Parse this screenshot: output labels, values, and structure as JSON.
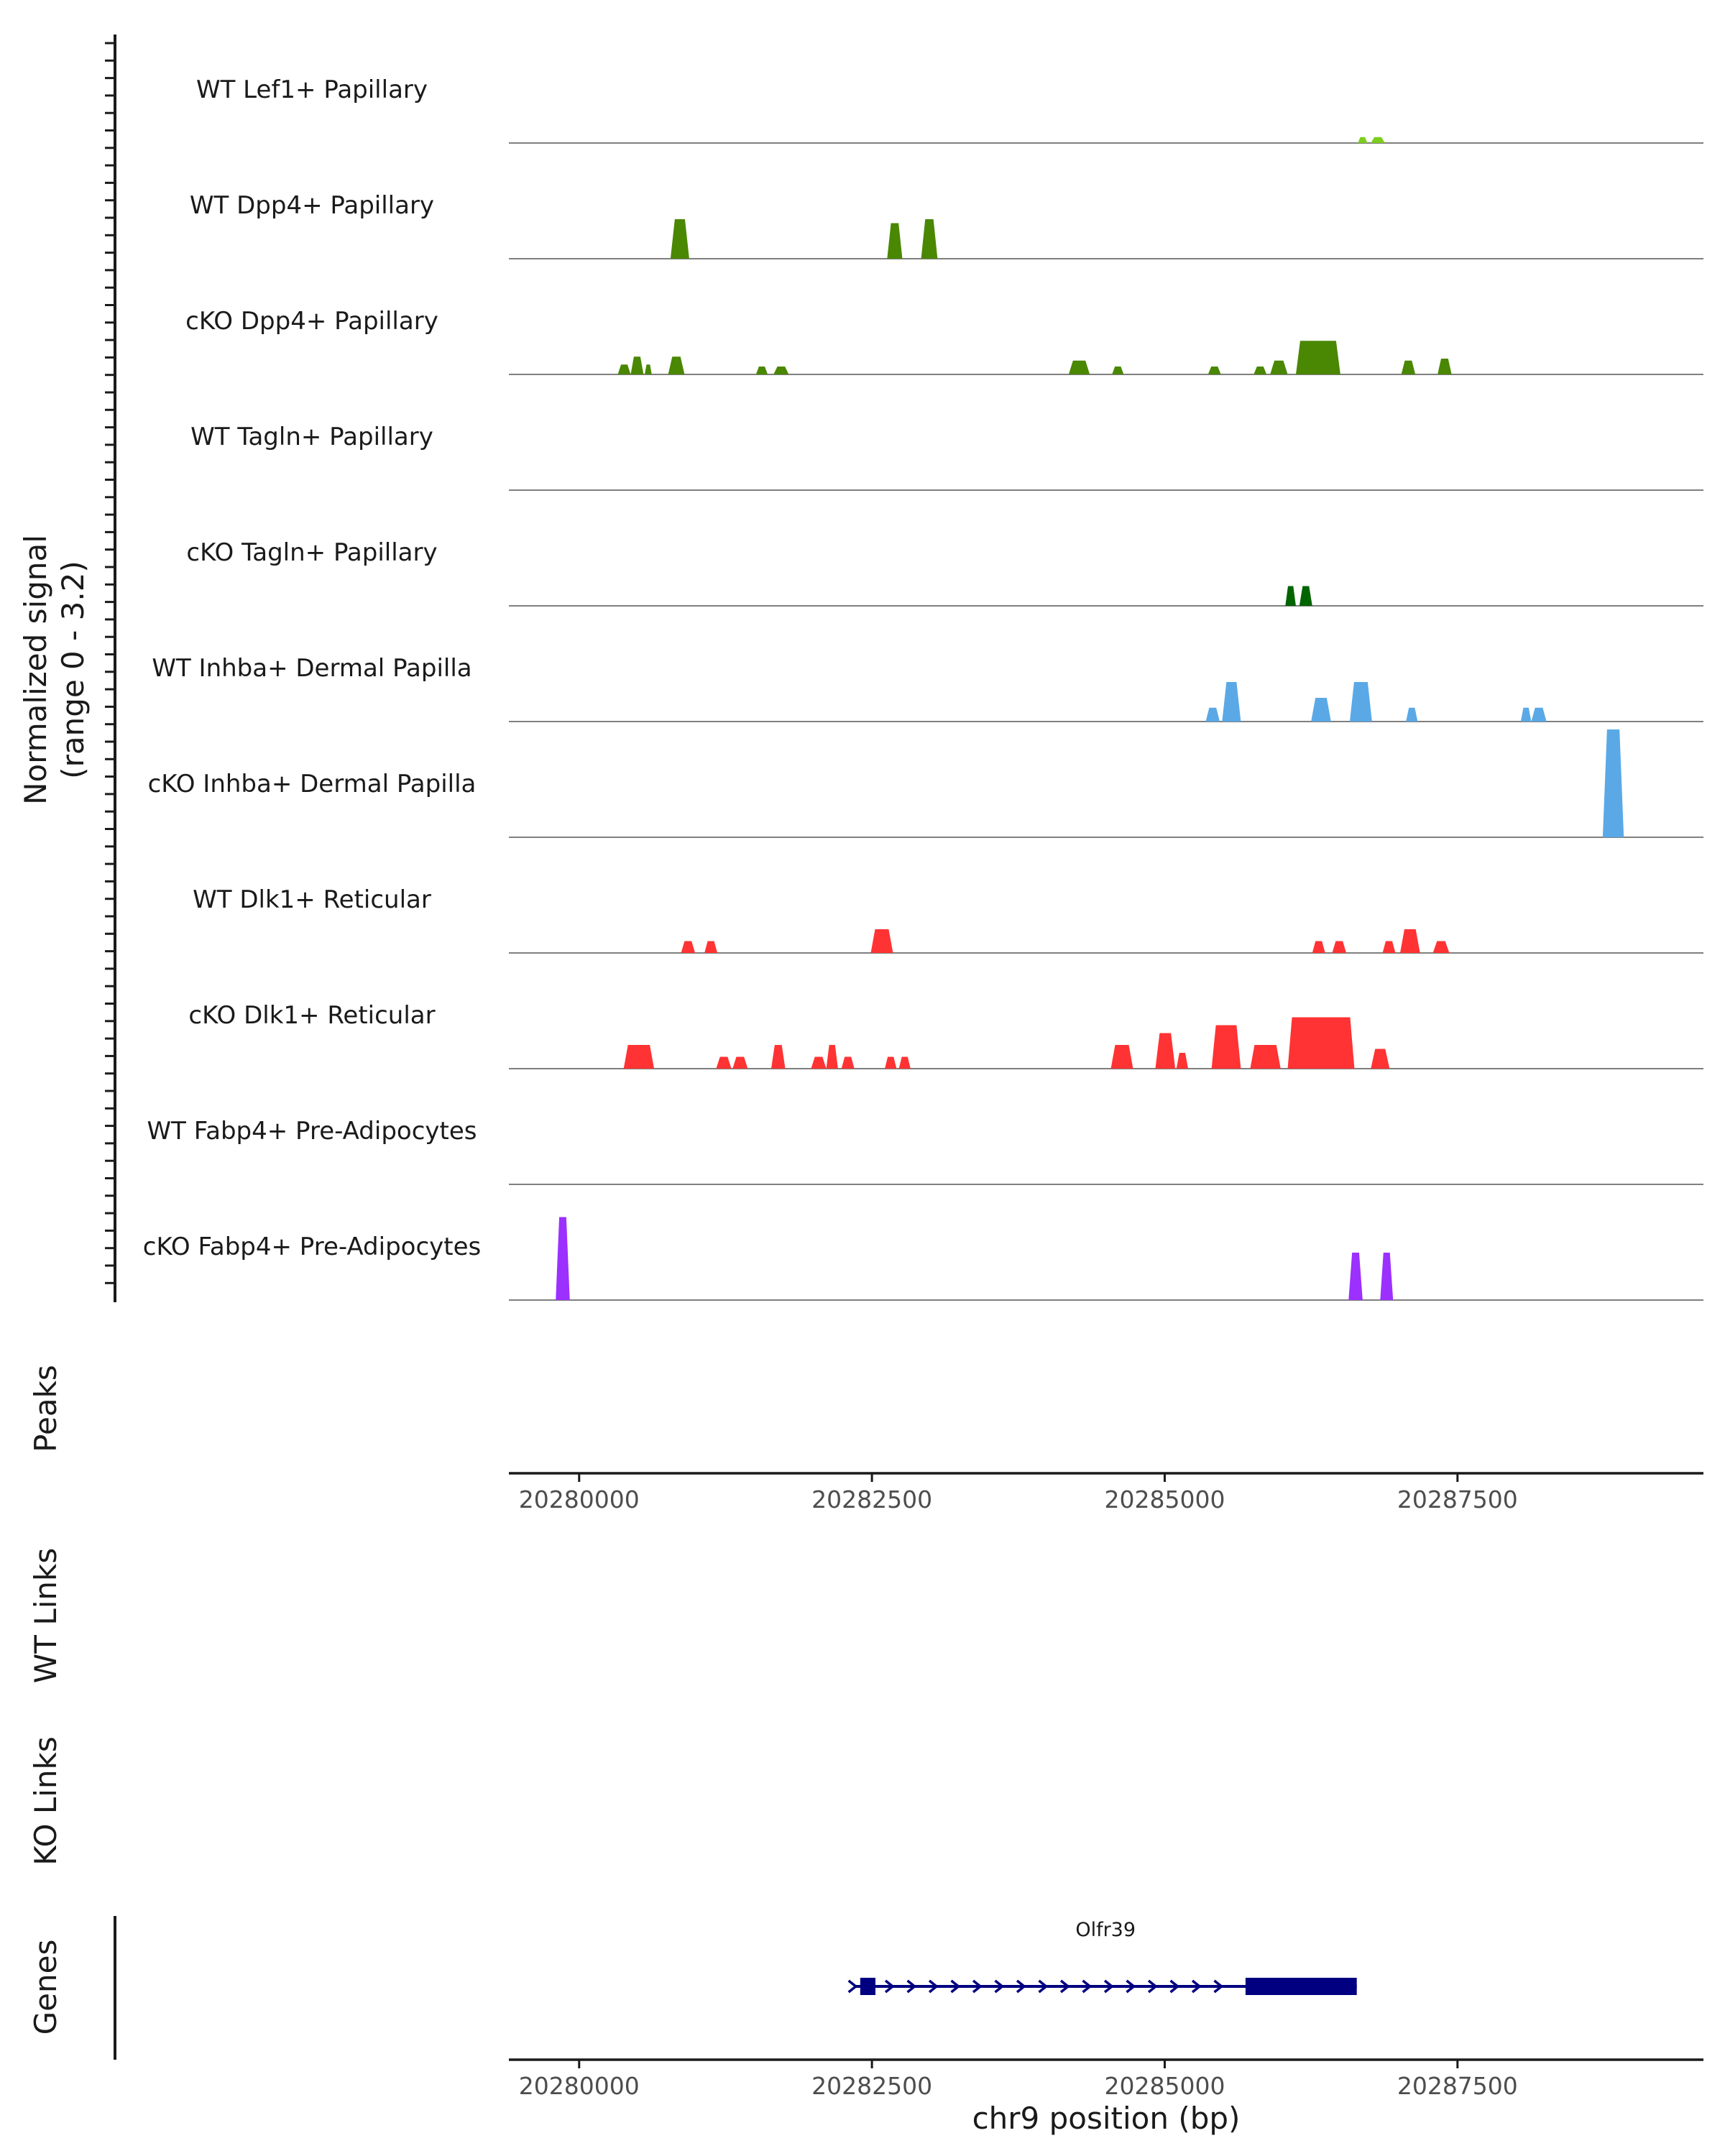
{
  "chart_data": {
    "type": "genome-coverage-tracks",
    "coverage": {
      "ylabel_line1": "Normalized signal",
      "ylabel_line2": "(range 0 - 3.2)",
      "ymax": 3.2,
      "tracks": [
        {
          "name": "WT Lef1+ Papillary",
          "color": "#7CCD1E",
          "peaks": [
            [
              20286650,
              20286730,
              0.15
            ],
            [
              20286760,
              20286880,
              0.15
            ]
          ]
        },
        {
          "name": "WT Dpp4+ Papillary",
          "color": "#4A8703",
          "peaks": [
            [
              20280780,
              20280940,
              1.0
            ],
            [
              20282630,
              20282760,
              0.9
            ],
            [
              20282920,
              20283060,
              1.0
            ]
          ]
        },
        {
          "name": "cKO Dpp4+ Papillary",
          "color": "#4A8703",
          "peaks": [
            [
              20280330,
              20280440,
              0.25
            ],
            [
              20280440,
              20280550,
              0.45
            ],
            [
              20280560,
              20280620,
              0.25
            ],
            [
              20280760,
              20280900,
              0.45
            ],
            [
              20281510,
              20281610,
              0.2
            ],
            [
              20281660,
              20281790,
              0.2
            ],
            [
              20284180,
              20284360,
              0.35
            ],
            [
              20284550,
              20284650,
              0.2
            ],
            [
              20285370,
              20285480,
              0.2
            ],
            [
              20285760,
              20285870,
              0.2
            ],
            [
              20285900,
              20286050,
              0.35
            ],
            [
              20286120,
              20286500,
              0.85
            ],
            [
              20287020,
              20287140,
              0.35
            ],
            [
              20287330,
              20287450,
              0.4
            ]
          ]
        },
        {
          "name": "WT Tagln+ Papillary",
          "color": "#3C8C21",
          "peaks": []
        },
        {
          "name": "cKO Tagln+ Papillary",
          "color": "#006400",
          "peaks": [
            [
              20286030,
              20286120,
              0.5
            ],
            [
              20286150,
              20286260,
              0.5
            ]
          ]
        },
        {
          "name": "WT Inhba+ Dermal Papilla",
          "color": "#5AA9E6",
          "peaks": [
            [
              20285350,
              20285470,
              0.35
            ],
            [
              20285490,
              20285650,
              1.0
            ],
            [
              20286250,
              20286420,
              0.6
            ],
            [
              20286580,
              20286770,
              1.0
            ],
            [
              20287060,
              20287160,
              0.35
            ],
            [
              20288040,
              20288130,
              0.35
            ],
            [
              20288130,
              20288260,
              0.35
            ]
          ]
        },
        {
          "name": "cKO Inhba+ Dermal Papilla",
          "color": "#5AA9E6",
          "peaks": [
            [
              20288740,
              20288920,
              2.8
            ]
          ]
        },
        {
          "name": "WT Dlk1+ Reticular",
          "color": "#FF3333",
          "peaks": [
            [
              20280870,
              20280990,
              0.3
            ],
            [
              20281070,
              20281180,
              0.3
            ],
            [
              20282490,
              20282680,
              0.6
            ],
            [
              20286260,
              20286370,
              0.3
            ],
            [
              20286430,
              20286550,
              0.3
            ],
            [
              20286860,
              20286970,
              0.3
            ],
            [
              20287010,
              20287180,
              0.6
            ],
            [
              20287290,
              20287430,
              0.3
            ]
          ]
        },
        {
          "name": "cKO Dlk1+ Reticular",
          "color": "#FF3333",
          "peaks": [
            [
              20280380,
              20280640,
              0.6
            ],
            [
              20281170,
              20281300,
              0.3
            ],
            [
              20281310,
              20281440,
              0.3
            ],
            [
              20281640,
              20281760,
              0.6
            ],
            [
              20281980,
              20282110,
              0.3
            ],
            [
              20282110,
              20282210,
              0.6
            ],
            [
              20282240,
              20282350,
              0.3
            ],
            [
              20282610,
              20282710,
              0.3
            ],
            [
              20282730,
              20282830,
              0.3
            ],
            [
              20284540,
              20284730,
              0.6
            ],
            [
              20284920,
              20285090,
              0.9
            ],
            [
              20285100,
              20285200,
              0.4
            ],
            [
              20285400,
              20285650,
              1.1
            ],
            [
              20285730,
              20285990,
              0.6
            ],
            [
              20286050,
              20286620,
              1.3
            ],
            [
              20286760,
              20286920,
              0.5
            ]
          ]
        },
        {
          "name": "WT Fabp4+ Pre-Adipocytes",
          "color": "#9B30FF",
          "peaks": []
        },
        {
          "name": "cKO Fabp4+ Pre-Adipocytes",
          "color": "#9B30FF",
          "peaks": [
            [
              20279800,
              20279920,
              2.1
            ],
            [
              20286570,
              20286690,
              1.2
            ],
            [
              20286840,
              20286950,
              1.2
            ]
          ]
        }
      ]
    },
    "peaks_label": "Peaks",
    "wt_links_label": "WT Links",
    "ko_links_label": "KO Links",
    "genes_label": "Genes",
    "xaxis": {
      "range": [
        20279400,
        20289600
      ],
      "ticks": [
        20280000,
        20282500,
        20285000,
        20287500
      ],
      "tick_labels": [
        "20280000",
        "20282500",
        "20285000",
        "20287500"
      ],
      "xlabel": "chr9 position (bp)"
    },
    "gene": {
      "name": "Olfr39",
      "color": "#000080",
      "start": 20282350,
      "end": 20286640,
      "strand": "+",
      "exons": [
        [
          20282400,
          20282530
        ],
        [
          20285690,
          20286640
        ]
      ]
    }
  }
}
